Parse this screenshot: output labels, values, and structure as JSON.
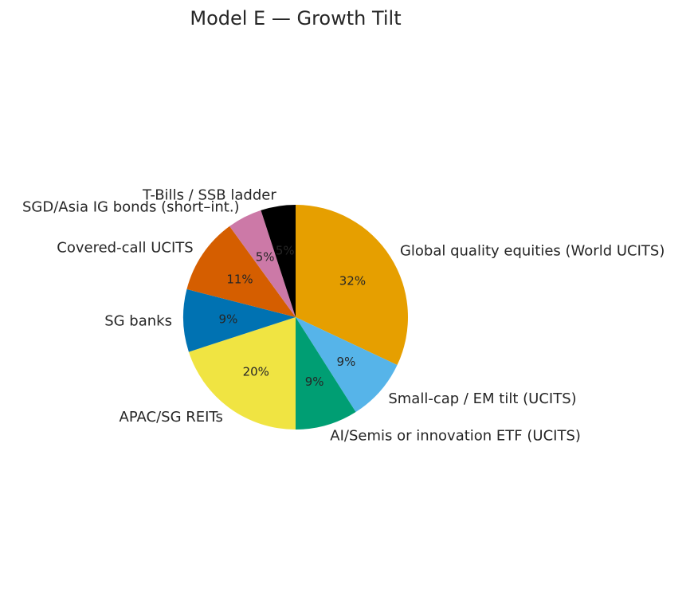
{
  "chart_data": {
    "type": "pie",
    "title": "Model E — Growth Tilt",
    "start_angle": 90,
    "direction": "clockwise",
    "slices": [
      {
        "label": "Global quality equities (World UCITS)",
        "value": 32,
        "pct_text": "32%",
        "color": "#E69F00"
      },
      {
        "label": "Small-cap / EM tilt (UCITS)",
        "value": 9,
        "pct_text": "9%",
        "color": "#56B4E9"
      },
      {
        "label": "AI/Semis or innovation ETF (UCITS)",
        "value": 9,
        "pct_text": "9%",
        "color": "#009E73"
      },
      {
        "label": "APAC/SG REITs",
        "value": 20,
        "pct_text": "20%",
        "color": "#F0E442"
      },
      {
        "label": "SG banks",
        "value": 9,
        "pct_text": "9%",
        "color": "#0072B2"
      },
      {
        "label": "Covered-call UCITS",
        "value": 11,
        "pct_text": "11%",
        "color": "#D55E00"
      },
      {
        "label": "SGD/Asia IG bonds (short–int.)",
        "value": 5,
        "pct_text": "5%",
        "color": "#CC79A7"
      },
      {
        "label": "T-Bills / SSB ladder",
        "value": 5,
        "pct_text": "5%",
        "color": "#000000"
      }
    ]
  }
}
